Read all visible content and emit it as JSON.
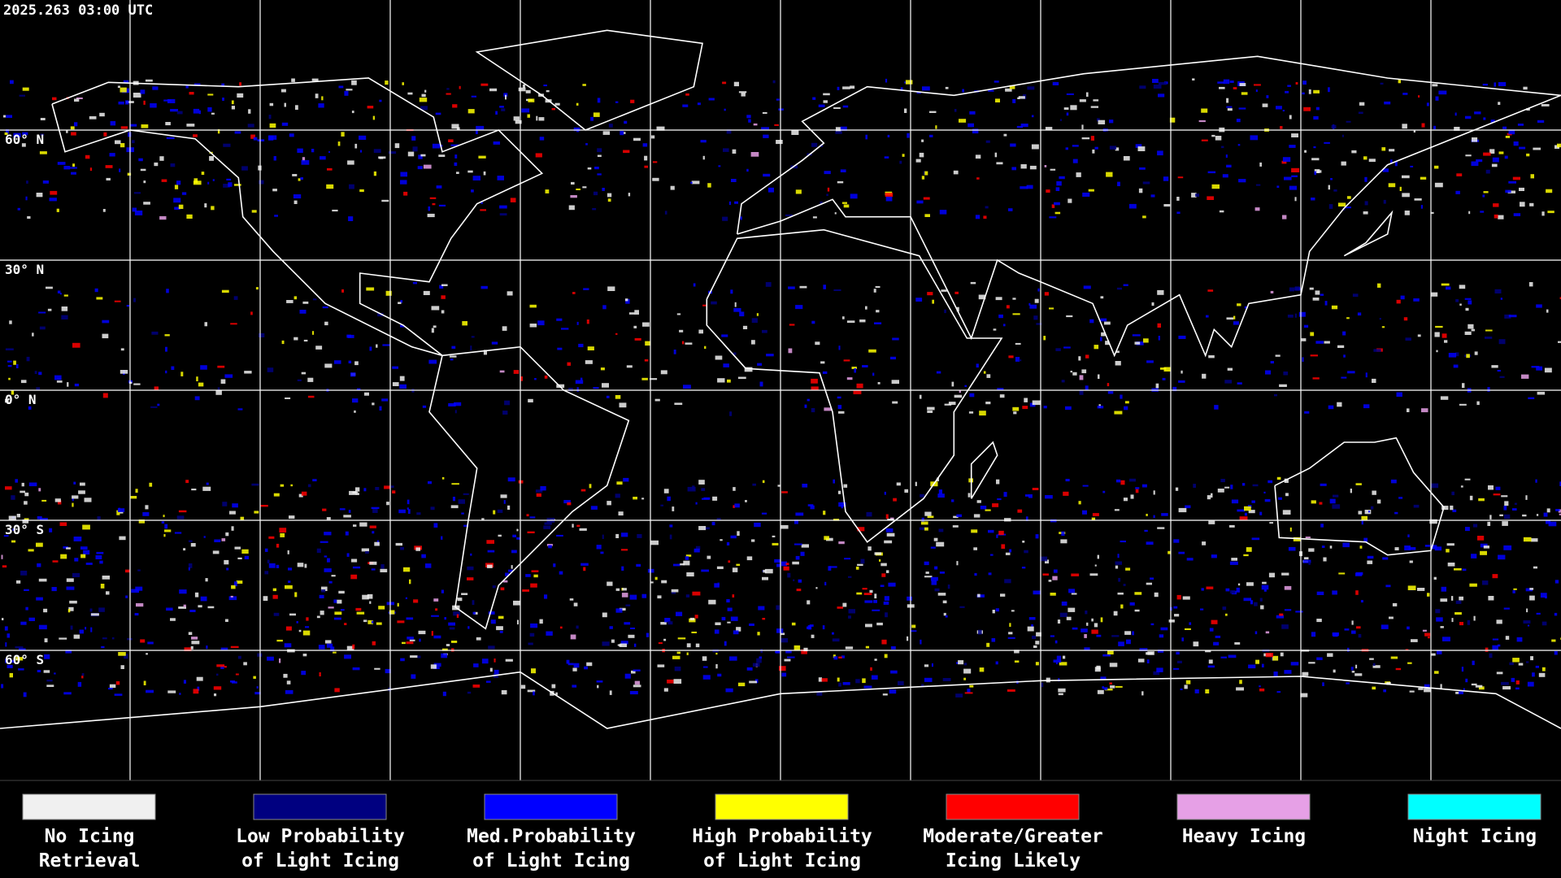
{
  "header": {
    "title": "2025.263 03:00 UTC"
  },
  "map": {
    "lat_labels": [
      "60° N",
      "30° N",
      "0° N",
      "30° S",
      "60° S"
    ]
  },
  "legend": [
    {
      "color": "#f0f0f0",
      "label": [
        "No Icing",
        "Retrieval"
      ]
    },
    {
      "color": "#000080",
      "label": [
        "Low Probability",
        "of Light Icing"
      ]
    },
    {
      "color": "#0000ff",
      "label": [
        "Med.Probability",
        "of Light Icing"
      ]
    },
    {
      "color": "#ffff00",
      "label": [
        "High Probability",
        "of Light Icing"
      ]
    },
    {
      "color": "#ff0000",
      "label": [
        "Moderate/Greater",
        "Icing Likely"
      ]
    },
    {
      "color": "#e6a0e6",
      "label": [
        "Heavy Icing"
      ]
    },
    {
      "color": "#00ffff",
      "label": [
        "Night Icing"
      ]
    }
  ]
}
